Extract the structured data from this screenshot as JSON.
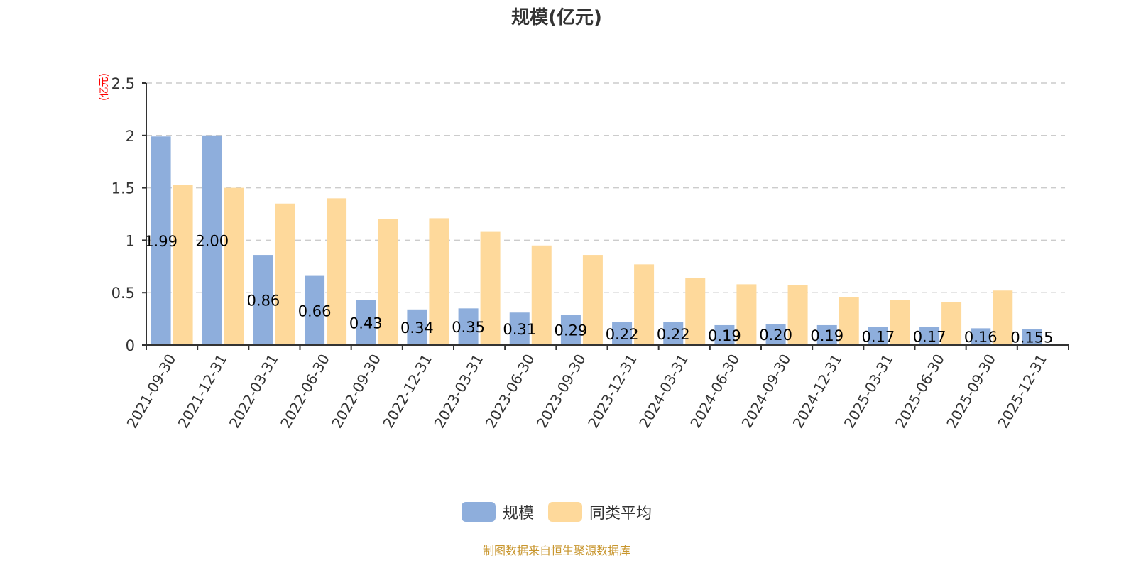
{
  "title": "规模(亿元)",
  "y_unit_label": "(亿元)",
  "legend": [
    {
      "label": "规模",
      "color": "#8eaedc"
    },
    {
      "label": "同类平均",
      "color": "#fed99b"
    }
  ],
  "source_note": "制图数据来自恒生聚源数据库",
  "colors": {
    "scale": "#8eaedc",
    "peer_avg": "#fed99b",
    "axis": "#333333",
    "grid": "#cccccc",
    "unit": "#ff0000",
    "source": "#c8962e"
  },
  "chart_data": {
    "type": "bar",
    "title": "规模(亿元)",
    "xlabel": "",
    "ylabel": "(亿元)",
    "ylim": [
      0,
      2.5
    ],
    "yticks": [
      0,
      0.5,
      1,
      1.5,
      2,
      2.5
    ],
    "ytick_labels": [
      "0",
      "0.5",
      "1",
      "1.5",
      "2",
      "2.5"
    ],
    "grid": true,
    "legend_position": "bottom",
    "categories": [
      "2021-09-30",
      "2021-12-31",
      "2022-03-31",
      "2022-06-30",
      "2022-09-30",
      "2022-12-31",
      "2023-03-31",
      "2023-06-30",
      "2023-09-30",
      "2023-12-31",
      "2024-03-31",
      "2024-06-30",
      "2024-09-30",
      "2024-12-31",
      "2025-03-31",
      "2025-06-30",
      "2025-09-30",
      "2025-12-31"
    ],
    "series": [
      {
        "name": "规模",
        "values": [
          1.99,
          2.0,
          0.86,
          0.66,
          0.43,
          0.34,
          0.35,
          0.31,
          0.29,
          0.22,
          0.22,
          0.19,
          0.2,
          0.19,
          0.17,
          0.17,
          0.16,
          0.155
        ],
        "labels": [
          "1.99",
          "2.00",
          "0.86",
          "0.66",
          "0.43",
          "0.34",
          "0.35",
          "0.31",
          "0.29",
          "0.22",
          "0.22",
          "0.19",
          "0.20",
          "0.19",
          "0.17",
          "0.17",
          "0.16",
          "0.155"
        ]
      },
      {
        "name": "同类平均",
        "values": [
          1.53,
          1.5,
          1.35,
          1.4,
          1.2,
          1.21,
          1.08,
          0.95,
          0.86,
          0.77,
          0.64,
          0.58,
          0.57,
          0.46,
          0.43,
          0.41,
          0.52,
          null
        ]
      }
    ]
  }
}
